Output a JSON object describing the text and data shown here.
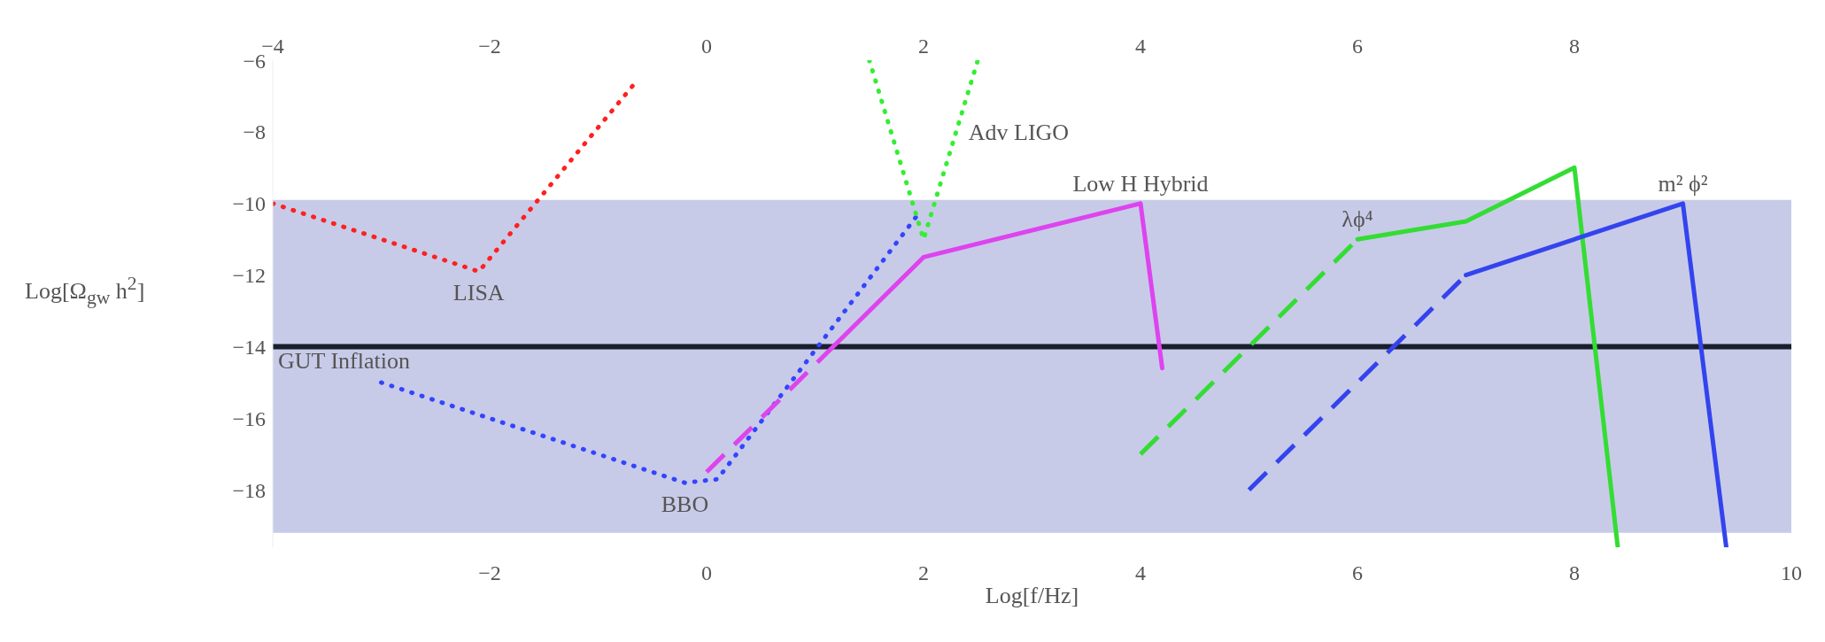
{
  "chart_data": {
    "type": "line",
    "xlabel": "Log[f/Hz]",
    "ylabel": "Log[Ω$_{gw}$ h$^{2}$]",
    "xlim": [
      -4,
      10
    ],
    "xticks": [
      -2,
      0,
      2,
      4,
      6,
      8,
      10
    ],
    "x2lim": [
      -4,
      10
    ],
    "x2ticks": [
      -4,
      -2,
      0,
      2,
      4,
      6,
      8
    ],
    "ylim": [
      -19.6,
      -6
    ],
    "yticks": [
      -6,
      -8,
      -10,
      -12,
      -14,
      -16,
      -18
    ],
    "marker": "none",
    "bands": [
      {
        "axis": "y",
        "from": -19.2,
        "to": -9.9,
        "color": "#c8cbe8"
      }
    ],
    "series": [
      {
        "color": "#ff2020",
        "line_style": "dotted",
        "x": [
          -4,
          -2.1,
          -0.65
        ],
        "values": [
          -10,
          -11.9,
          -6.6
        ]
      },
      {
        "color": "#3344ff",
        "line_style": "dotted",
        "x": [
          -3,
          -0.2,
          0.1,
          1.95
        ],
        "values": [
          -15,
          -17.8,
          -17.7,
          -10.3
        ]
      },
      {
        "color": "#33ee33",
        "line_style": "dotted",
        "x": [
          1.5,
          2,
          2.5
        ],
        "values": [
          -6,
          -11,
          -6
        ]
      },
      {
        "color": "#dd44ee",
        "line_style": "dashed",
        "x": [
          0,
          1.15
        ],
        "values": [
          -17.5,
          -14.05
        ]
      },
      {
        "color": "#dd44ee",
        "line_style": "solid",
        "x": [
          1.15,
          2,
          4,
          4.2
        ],
        "values": [
          -14.05,
          -11.5,
          -10,
          -14.6
        ]
      },
      {
        "color": "#33dd33",
        "line_style": "dashed",
        "x": [
          4,
          6
        ],
        "values": [
          -17,
          -11
        ]
      },
      {
        "color": "#33dd33",
        "line_style": "solid",
        "x": [
          6,
          7,
          8,
          8.4
        ],
        "values": [
          -11,
          -10.5,
          -9,
          -19.6
        ]
      },
      {
        "color": "#3344ee",
        "line_style": "dashed",
        "x": [
          5,
          7
        ],
        "values": [
          -18,
          -12
        ]
      },
      {
        "color": "#3344ee",
        "line_style": "solid",
        "x": [
          7,
          9,
          9.4
        ],
        "values": [
          -12,
          -10,
          -19.6
        ]
      }
    ],
    "ref_lines": [
      {
        "axis": "y",
        "value": -14,
        "label": "GUT Inflation",
        "color": "#1a1f2e"
      }
    ],
    "annotations": [
      {
        "text": "LISA",
        "x": -2.1,
        "y": -11.9
      },
      {
        "text": "BBO",
        "x": -0.2,
        "y": -17.8
      },
      {
        "text": "Adv LIGO",
        "x": 2.3,
        "y": -8
      },
      {
        "text": "Low H Hybrid",
        "x": 4,
        "y": -10
      },
      {
        "text": "λϕ⁴",
        "x": 6,
        "y": -11
      },
      {
        "text": "m² ϕ²",
        "x": 9,
        "y": -10
      }
    ]
  }
}
